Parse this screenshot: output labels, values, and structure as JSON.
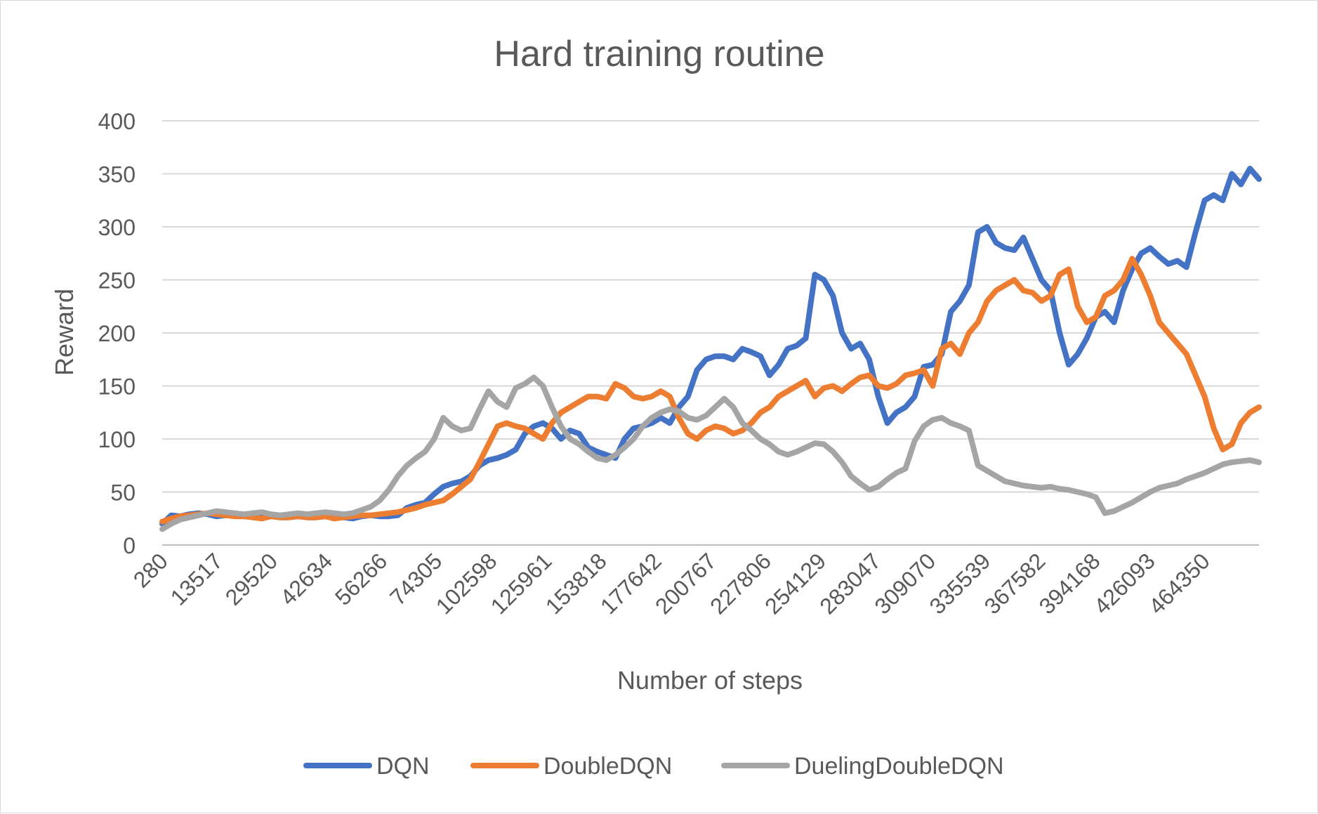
{
  "chart_data": {
    "type": "line",
    "title": "Hard training routine",
    "xlabel": "Number of steps",
    "ylabel": "Reward",
    "ylim": [
      0,
      400
    ],
    "yticks": [
      0,
      50,
      100,
      150,
      200,
      250,
      300,
      350,
      400
    ],
    "x_tick_labels": [
      "280",
      "13517",
      "29520",
      "42634",
      "56266",
      "74305",
      "102598",
      "125961",
      "153818",
      "177642",
      "200767",
      "227806",
      "254129",
      "283047",
      "309070",
      "335539",
      "367582",
      "394168",
      "426093",
      "464350"
    ],
    "grid": true,
    "legend_position": "bottom",
    "series": [
      {
        "name": "DQN",
        "color": "#4472c4",
        "values": [
          20,
          28,
          27,
          29,
          30,
          29,
          27,
          28,
          29,
          27,
          27,
          28,
          27,
          26,
          26,
          27,
          26,
          26,
          27,
          27,
          26,
          25,
          27,
          28,
          27,
          27,
          28,
          35,
          38,
          40,
          48,
          55,
          58,
          60,
          65,
          75,
          80,
          82,
          85,
          90,
          105,
          112,
          115,
          110,
          100,
          108,
          105,
          92,
          88,
          85,
          82,
          100,
          110,
          112,
          115,
          120,
          115,
          130,
          140,
          165,
          175,
          178,
          178,
          175,
          185,
          182,
          178,
          160,
          170,
          185,
          188,
          195,
          255,
          250,
          235,
          200,
          185,
          190,
          175,
          140,
          115,
          125,
          130,
          140,
          168,
          170,
          180,
          220,
          230,
          245,
          295,
          300,
          285,
          280,
          278,
          290,
          270,
          250,
          240,
          200,
          170,
          180,
          195,
          215,
          220,
          210,
          240,
          260,
          275,
          280,
          272,
          265,
          268,
          262,
          295,
          325,
          330,
          325,
          350,
          340,
          355,
          345
        ]
      },
      {
        "name": "DoubleDQN",
        "color": "#ed7d31",
        "values": [
          22,
          25,
          27,
          28,
          29,
          30,
          29,
          28,
          27,
          27,
          26,
          25,
          27,
          26,
          26,
          27,
          26,
          26,
          27,
          25,
          26,
          27,
          28,
          28,
          29,
          30,
          31,
          33,
          35,
          38,
          40,
          42,
          48,
          55,
          62,
          78,
          95,
          112,
          115,
          112,
          110,
          105,
          100,
          115,
          125,
          130,
          135,
          140,
          140,
          138,
          152,
          148,
          140,
          138,
          140,
          145,
          140,
          120,
          105,
          100,
          108,
          112,
          110,
          105,
          108,
          115,
          125,
          130,
          140,
          145,
          150,
          155,
          140,
          148,
          150,
          145,
          152,
          158,
          160,
          150,
          148,
          152,
          160,
          162,
          165,
          150,
          185,
          190,
          180,
          200,
          210,
          230,
          240,
          245,
          250,
          240,
          238,
          230,
          235,
          255,
          260,
          225,
          210,
          215,
          235,
          240,
          250,
          270,
          255,
          235,
          210,
          200,
          190,
          180,
          160,
          140,
          110,
          90,
          95,
          115,
          125,
          130
        ]
      },
      {
        "name": "DuelingDoubleDQN",
        "color": "#a5a5a5",
        "values": [
          15,
          20,
          24,
          26,
          28,
          30,
          32,
          31,
          30,
          29,
          30,
          31,
          29,
          28,
          29,
          30,
          29,
          30,
          31,
          30,
          29,
          30,
          33,
          36,
          42,
          52,
          65,
          75,
          82,
          88,
          100,
          120,
          112,
          108,
          110,
          128,
          145,
          135,
          130,
          148,
          152,
          158,
          150,
          130,
          112,
          100,
          95,
          88,
          82,
          80,
          85,
          92,
          100,
          112,
          120,
          125,
          128,
          126,
          120,
          118,
          122,
          130,
          138,
          130,
          115,
          108,
          100,
          95,
          88,
          85,
          88,
          92,
          96,
          95,
          88,
          78,
          65,
          58,
          52,
          55,
          62,
          68,
          72,
          98,
          112,
          118,
          120,
          115,
          112,
          108,
          75,
          70,
          65,
          60,
          58,
          56,
          55,
          54,
          55,
          53,
          52,
          50,
          48,
          45,
          30,
          32,
          36,
          40,
          45,
          50,
          54,
          56,
          58,
          62,
          65,
          68,
          72,
          76,
          78,
          79,
          80,
          78
        ]
      }
    ]
  }
}
